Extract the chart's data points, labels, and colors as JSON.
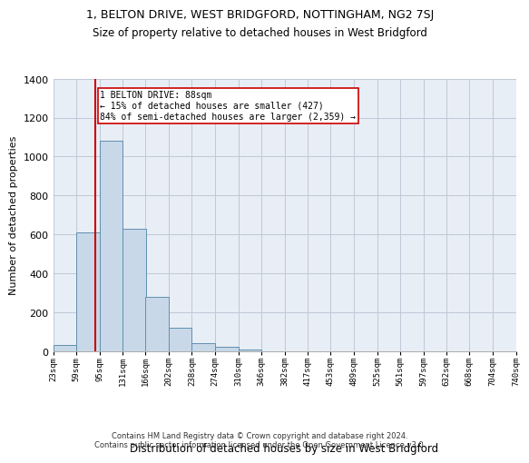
{
  "title": "1, BELTON DRIVE, WEST BRIDGFORD, NOTTINGHAM, NG2 7SJ",
  "subtitle": "Size of property relative to detached houses in West Bridgford",
  "xlabel": "Distribution of detached houses by size in West Bridgford",
  "ylabel": "Number of detached properties",
  "annotation_line": "1 BELTON DRIVE: 88sqm\n← 15% of detached houses are smaller (427)\n84% of semi-detached houses are larger (2,359) →",
  "property_size_sqm": 88,
  "bin_edges": [
    23,
    59,
    95,
    131,
    166,
    202,
    238,
    274,
    310,
    346,
    382,
    417,
    453,
    489,
    525,
    561,
    597,
    632,
    668,
    704,
    740
  ],
  "bar_heights": [
    30,
    610,
    1080,
    630,
    280,
    120,
    40,
    20,
    10,
    0,
    0,
    0,
    0,
    0,
    0,
    0,
    0,
    0,
    0,
    0
  ],
  "bar_color": "#c8d8e8",
  "bar_edge_color": "#6090b0",
  "annotation_line_color": "#cc0000",
  "annotation_box_color": "#cc0000",
  "annotation_box_bg": "#ffffff",
  "grid_color": "#c0c8d8",
  "background_color": "#e8eef5",
  "ylim": [
    0,
    1400
  ],
  "yticks": [
    0,
    200,
    400,
    600,
    800,
    1000,
    1200,
    1400
  ],
  "footer_text": "Contains HM Land Registry data © Crown copyright and database right 2024.\nContains public sector information licensed under the Open Government Licence v3.0.",
  "tick_labels": [
    "23sqm",
    "59sqm",
    "95sqm",
    "131sqm",
    "166sqm",
    "202sqm",
    "238sqm",
    "274sqm",
    "310sqm",
    "346sqm",
    "382sqm",
    "417sqm",
    "453sqm",
    "489sqm",
    "525sqm",
    "561sqm",
    "597sqm",
    "632sqm",
    "668sqm",
    "704sqm",
    "740sqm"
  ]
}
